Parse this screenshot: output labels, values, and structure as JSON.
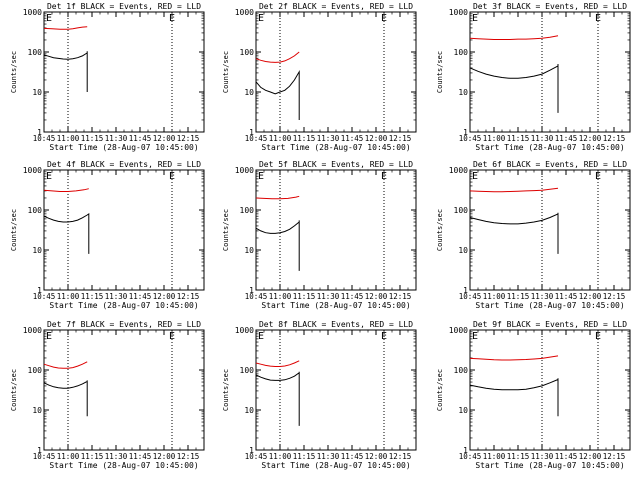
{
  "colors": {
    "events": "#000000",
    "lld": "#dd0000",
    "axis": "#000000",
    "background": "#ffffff"
  },
  "shared": {
    "type": "line",
    "y_scale": "log",
    "ylim": [
      1,
      1000
    ],
    "yticks": [
      "1",
      "10",
      "100",
      "1000"
    ],
    "ylabel": "Counts/sec",
    "xlim": [
      "10:45",
      "12:25"
    ],
    "xticks": [
      "10:45",
      "11:00",
      "11:15",
      "11:30",
      "11:45",
      "12:00",
      "12:15"
    ],
    "xlabel": "Start Time (28-Aug-07 10:45:00)",
    "corner_marker": "E",
    "grid": false
  },
  "chart_data": [
    {
      "type": "line",
      "title": "Det 1f BLACK = Events, RED = LLD",
      "xlabel": "Start Time (28-Aug-07 10:45:00)",
      "ylabel": "Counts/sec",
      "vlines": [
        "11:00",
        "12:05"
      ],
      "series": [
        {
          "name": "LLD",
          "color": "#dd0000",
          "x": [
            "10:45",
            "10:50",
            "10:55",
            "11:00",
            "11:03",
            "11:06",
            "11:09",
            "11:12"
          ],
          "values": [
            390,
            380,
            370,
            370,
            380,
            400,
            420,
            430
          ]
        },
        {
          "name": "Events",
          "color": "#000000",
          "x": [
            "10:45",
            "10:48",
            "10:51",
            "10:54",
            "10:57",
            "11:00",
            "11:03",
            "11:06",
            "11:09",
            "11:12",
            "11:12",
            "11:12"
          ],
          "values": [
            85,
            78,
            72,
            69,
            67,
            66,
            68,
            72,
            80,
            95,
            105,
            10
          ]
        }
      ]
    },
    {
      "type": "line",
      "title": "Det 2f BLACK = Events, RED = LLD",
      "xlabel": "Start Time (28-Aug-07 10:45:00)",
      "ylabel": "Counts/sec",
      "vlines": [
        "11:00",
        "12:05"
      ],
      "series": [
        {
          "name": "LLD",
          "color": "#dd0000",
          "x": [
            "10:45",
            "10:48",
            "10:51",
            "10:54",
            "10:57",
            "11:00",
            "11:03",
            "11:06",
            "11:09",
            "11:12"
          ],
          "values": [
            68,
            62,
            58,
            56,
            55,
            56,
            60,
            68,
            80,
            100
          ]
        },
        {
          "name": "Events",
          "color": "#000000",
          "x": [
            "10:45",
            "10:48",
            "10:51",
            "10:54",
            "10:57",
            "11:00",
            "11:03",
            "11:06",
            "11:09",
            "11:12",
            "11:12"
          ],
          "values": [
            18,
            13,
            11,
            10,
            9,
            10,
            11,
            14,
            20,
            32,
            2
          ]
        }
      ]
    },
    {
      "type": "line",
      "title": "Det 3f BLACK = Events, RED = LLD",
      "xlabel": "Start Time (28-Aug-07 10:45:00)",
      "ylabel": "Counts/sec",
      "vlines": [
        "11:30",
        "12:05"
      ],
      "series": [
        {
          "name": "LLD",
          "color": "#dd0000",
          "x": [
            "10:45",
            "10:50",
            "10:55",
            "11:00",
            "11:05",
            "11:10",
            "11:15",
            "11:20",
            "11:25",
            "11:30",
            "11:35",
            "11:40"
          ],
          "values": [
            220,
            215,
            210,
            205,
            205,
            205,
            210,
            210,
            215,
            220,
            235,
            255
          ]
        },
        {
          "name": "Events",
          "color": "#000000",
          "x": [
            "10:45",
            "10:50",
            "10:55",
            "11:00",
            "11:05",
            "11:10",
            "11:15",
            "11:20",
            "11:25",
            "11:30",
            "11:35",
            "11:40",
            "11:40",
            "11:40"
          ],
          "values": [
            40,
            33,
            28,
            25,
            23,
            22,
            22,
            23,
            25,
            28,
            35,
            45,
            50,
            3
          ]
        }
      ]
    },
    {
      "type": "line",
      "title": "Det 4f BLACK = Events, RED = LLD",
      "xlabel": "Start Time (28-Aug-07 10:45:00)",
      "ylabel": "Counts/sec",
      "vlines": [
        "11:00",
        "12:05"
      ],
      "series": [
        {
          "name": "LLD",
          "color": "#dd0000",
          "x": [
            "10:45",
            "10:50",
            "10:55",
            "11:00",
            "11:05",
            "11:10",
            "11:13"
          ],
          "values": [
            310,
            300,
            290,
            290,
            300,
            320,
            340
          ]
        },
        {
          "name": "Events",
          "color": "#000000",
          "x": [
            "10:45",
            "10:48",
            "10:51",
            "10:54",
            "10:57",
            "11:00",
            "11:03",
            "11:06",
            "11:09",
            "11:12",
            "11:13",
            "11:13"
          ],
          "values": [
            70,
            62,
            56,
            52,
            50,
            50,
            52,
            56,
            64,
            75,
            80,
            8
          ]
        }
      ]
    },
    {
      "type": "line",
      "title": "Det 5f BLACK = Events, RED = LLD",
      "xlabel": "Start Time (28-Aug-07 10:45:00)",
      "ylabel": "Counts/sec",
      "vlines": [
        "11:00",
        "12:05"
      ],
      "series": [
        {
          "name": "LLD",
          "color": "#dd0000",
          "x": [
            "10:45",
            "10:50",
            "10:55",
            "11:00",
            "11:05",
            "11:10",
            "11:12"
          ],
          "values": [
            200,
            195,
            190,
            190,
            195,
            210,
            220
          ]
        },
        {
          "name": "Events",
          "color": "#000000",
          "x": [
            "10:45",
            "10:48",
            "10:51",
            "10:54",
            "10:57",
            "11:00",
            "11:03",
            "11:06",
            "11:09",
            "11:12",
            "11:12",
            "11:12"
          ],
          "values": [
            35,
            30,
            27,
            26,
            26,
            27,
            29,
            33,
            40,
            50,
            55,
            3
          ]
        }
      ]
    },
    {
      "type": "line",
      "title": "Det 6f BLACK = Events, RED = LLD",
      "xlabel": "Start Time (28-Aug-07 10:45:00)",
      "ylabel": "Counts/sec",
      "vlines": [
        "11:30",
        "12:05"
      ],
      "series": [
        {
          "name": "LLD",
          "color": "#dd0000",
          "x": [
            "10:45",
            "10:50",
            "10:55",
            "11:00",
            "11:05",
            "11:10",
            "11:15",
            "11:20",
            "11:25",
            "11:30",
            "11:35",
            "11:40"
          ],
          "values": [
            300,
            295,
            290,
            285,
            285,
            290,
            295,
            300,
            305,
            310,
            330,
            350
          ]
        },
        {
          "name": "Events",
          "color": "#000000",
          "x": [
            "10:45",
            "10:50",
            "10:55",
            "11:00",
            "11:05",
            "11:10",
            "11:15",
            "11:20",
            "11:25",
            "11:30",
            "11:35",
            "11:40",
            "11:40",
            "11:40"
          ],
          "values": [
            65,
            58,
            52,
            48,
            46,
            45,
            45,
            47,
            50,
            55,
            65,
            80,
            85,
            8
          ]
        }
      ]
    },
    {
      "type": "line",
      "title": "Det 7f BLACK = Events, RED = LLD",
      "xlabel": "Start Time (28-Aug-07 10:45:00)",
      "ylabel": "Counts/sec",
      "vlines": [
        "11:00",
        "12:05"
      ],
      "series": [
        {
          "name": "LLD",
          "color": "#dd0000",
          "x": [
            "10:45",
            "10:48",
            "10:51",
            "10:54",
            "10:57",
            "11:00",
            "11:03",
            "11:06",
            "11:09",
            "11:12"
          ],
          "values": [
            140,
            128,
            118,
            112,
            110,
            110,
            115,
            125,
            140,
            160
          ]
        },
        {
          "name": "Events",
          "color": "#000000",
          "x": [
            "10:45",
            "10:48",
            "10:51",
            "10:54",
            "10:57",
            "11:00",
            "11:03",
            "11:06",
            "11:09",
            "11:12",
            "11:12",
            "11:12"
          ],
          "values": [
            48,
            42,
            38,
            36,
            35,
            35,
            37,
            40,
            45,
            52,
            55,
            7
          ]
        }
      ]
    },
    {
      "type": "line",
      "title": "Det 8f BLACK = Events, RED = LLD",
      "xlabel": "Start Time (28-Aug-07 10:45:00)",
      "ylabel": "Counts/sec",
      "vlines": [
        "11:00",
        "12:05"
      ],
      "series": [
        {
          "name": "LLD",
          "color": "#dd0000",
          "x": [
            "10:45",
            "10:48",
            "10:51",
            "10:54",
            "10:57",
            "11:00",
            "11:03",
            "11:06",
            "11:09",
            "11:12"
          ],
          "values": [
            150,
            140,
            130,
            125,
            122,
            122,
            126,
            135,
            150,
            170
          ]
        },
        {
          "name": "Events",
          "color": "#000000",
          "x": [
            "10:45",
            "10:48",
            "10:51",
            "10:54",
            "10:57",
            "11:00",
            "11:03",
            "11:06",
            "11:09",
            "11:12",
            "11:12",
            "11:12"
          ],
          "values": [
            75,
            66,
            60,
            56,
            55,
            55,
            57,
            62,
            70,
            85,
            90,
            4
          ]
        }
      ]
    },
    {
      "type": "line",
      "title": "Det 9f BLACK = Events, RED = LLD",
      "xlabel": "Start Time (28-Aug-07 10:45:00)",
      "ylabel": "Counts/sec",
      "vlines": [
        "11:30",
        "12:05"
      ],
      "series": [
        {
          "name": "LLD",
          "color": "#dd0000",
          "x": [
            "10:45",
            "10:50",
            "10:55",
            "11:00",
            "11:05",
            "11:10",
            "11:15",
            "11:20",
            "11:25",
            "11:30",
            "11:35",
            "11:40"
          ],
          "values": [
            195,
            190,
            185,
            180,
            178,
            178,
            180,
            183,
            188,
            195,
            210,
            225
          ]
        },
        {
          "name": "Events",
          "color": "#000000",
          "x": [
            "10:45",
            "10:50",
            "10:55",
            "11:00",
            "11:05",
            "11:10",
            "11:15",
            "11:20",
            "11:25",
            "11:30",
            "11:35",
            "11:40",
            "11:40",
            "11:40"
          ],
          "values": [
            42,
            38,
            35,
            33,
            32,
            32,
            32,
            33,
            36,
            40,
            48,
            58,
            62,
            7
          ]
        }
      ]
    }
  ]
}
